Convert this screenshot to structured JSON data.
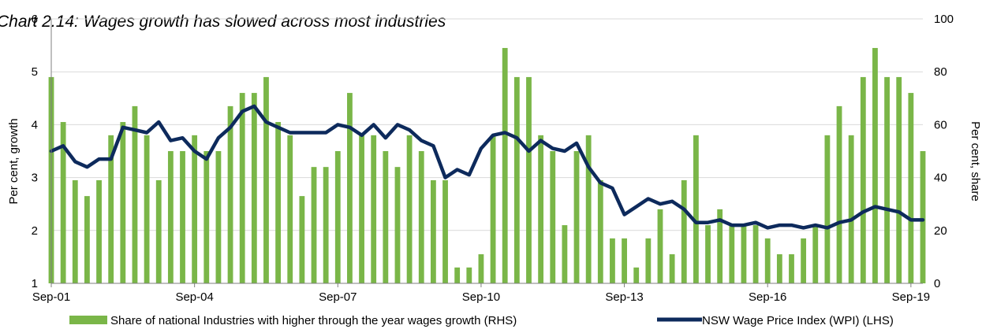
{
  "chart_data": {
    "type": "bar+line",
    "title": "Chart 2.14: Wages growth has slowed across most industries",
    "x_tick_labels": [
      "Sep-01",
      "Sep-04",
      "Sep-07",
      "Sep-10",
      "Sep-13",
      "Sep-16",
      "Sep-19"
    ],
    "left_axis": {
      "label": "Per cent, growth",
      "min": 1,
      "max": 6,
      "ticks": [
        1,
        2,
        3,
        4,
        5,
        6
      ]
    },
    "right_axis": {
      "label": "Per cent, share",
      "min": 0,
      "max": 100,
      "ticks": [
        0,
        20,
        40,
        60,
        80,
        100
      ]
    },
    "gridlines": true,
    "legend_position": "bottom",
    "series": [
      {
        "name": "Share of national Industries with higher through the year wages growth (RHS)",
        "type": "bar",
        "axis": "right",
        "color": "#7ab648",
        "values": [
          78,
          61,
          39,
          33,
          39,
          56,
          61,
          67,
          56,
          39,
          50,
          50,
          56,
          50,
          50,
          67,
          72,
          72,
          78,
          61,
          56,
          33,
          44,
          44,
          50,
          72,
          56,
          56,
          50,
          44,
          56,
          50,
          39,
          39,
          6,
          6,
          11,
          56,
          89,
          78,
          78,
          56,
          50,
          22,
          50,
          56,
          39,
          17,
          17,
          6,
          17,
          28,
          11,
          39,
          56,
          22,
          28,
          22,
          22,
          22,
          17,
          11,
          11,
          17,
          22,
          56,
          67,
          56,
          78,
          89,
          78,
          78,
          72,
          50
        ]
      },
      {
        "name": "NSW Wage Price Index (WPI) (LHS)",
        "type": "line",
        "axis": "left",
        "color": "#0d2a5c",
        "values": [
          3.5,
          3.6,
          3.3,
          3.2,
          3.35,
          3.35,
          3.95,
          3.9,
          3.85,
          4.05,
          3.7,
          3.75,
          3.5,
          3.35,
          3.75,
          3.95,
          4.25,
          4.35,
          4.05,
          3.95,
          3.85,
          3.85,
          3.85,
          3.85,
          4.0,
          3.95,
          3.8,
          4.0,
          3.75,
          4.0,
          3.9,
          3.7,
          3.6,
          3.0,
          3.15,
          3.05,
          3.55,
          3.8,
          3.85,
          3.75,
          3.5,
          3.7,
          3.55,
          3.5,
          3.65,
          3.2,
          2.9,
          2.8,
          2.3,
          2.45,
          2.6,
          2.5,
          2.55,
          2.4,
          2.15,
          2.15,
          2.2,
          2.1,
          2.1,
          2.15,
          2.05,
          2.1,
          2.1,
          2.05,
          2.1,
          2.05,
          2.15,
          2.2,
          2.35,
          2.45,
          2.4,
          2.35,
          2.2,
          2.2
        ]
      }
    ]
  }
}
